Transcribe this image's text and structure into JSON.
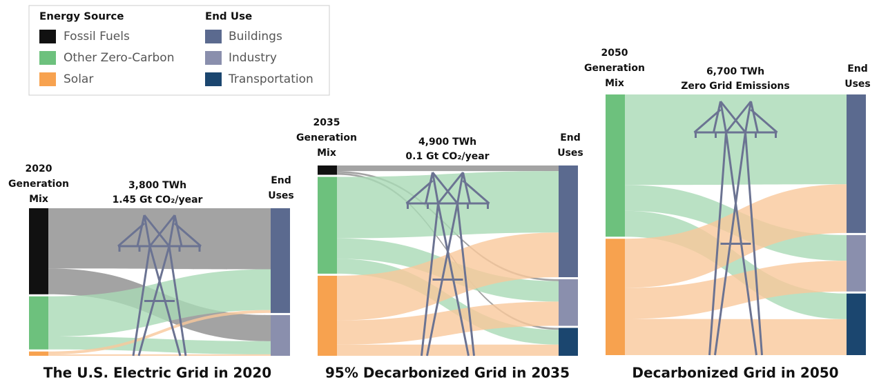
{
  "legend": {
    "source_title": "Energy Source",
    "use_title": "End Use",
    "sources": [
      {
        "label": "Fossil Fuels",
        "color": "#111111",
        "flow_color": "#8c8c8c"
      },
      {
        "label": "Other Zero-Carbon",
        "color": "#6dc17d",
        "flow_color": "#a9dab5"
      },
      {
        "label": "Solar",
        "color": "#f7a24f",
        "flow_color": "#f9c89b"
      }
    ],
    "uses": [
      {
        "label": "Buildings",
        "color": "#5b6a8f"
      },
      {
        "label": "Industry",
        "color": "#8a8fad"
      },
      {
        "label": "Transportation",
        "color": "#1b466f"
      }
    ]
  },
  "panels": [
    {
      "mix_label": [
        "2020",
        "Generation",
        "Mix"
      ],
      "total": "3,800 TWh",
      "emissions": "1.45 Gt CO₂/year",
      "uses_label": [
        "End",
        "Uses"
      ],
      "title": "The U.S. Electric Grid in 2020",
      "sources": [
        60,
        37,
        3
      ],
      "uses": [
        72,
        28,
        0
      ],
      "flows": [
        [
          42,
          18,
          0
        ],
        [
          28,
          9,
          0
        ],
        [
          2,
          1,
          0
        ]
      ]
    },
    {
      "mix_label": [
        "2035",
        "Generation",
        "Mix"
      ],
      "total": "4,900 TWh",
      "emissions": "0.1 Gt CO₂/year",
      "uses_label": [
        "End",
        "Uses"
      ],
      "title": "95% Decarbonized Grid in 2035",
      "sources": [
        5,
        52,
        43
      ],
      "uses": [
        60,
        25,
        15
      ],
      "flows": [
        [
          3,
          1,
          1
        ],
        [
          33,
          11,
          8
        ],
        [
          24,
          13,
          6
        ]
      ]
    },
    {
      "mix_label": [
        "2050",
        "Generation",
        "Mix"
      ],
      "total": "6,700 TWh",
      "emissions": "Zero Grid Emissions",
      "uses_label": [
        "End",
        "Uses"
      ],
      "title": "Decarbonized Grid in 2050",
      "sources": [
        0,
        55,
        45
      ],
      "uses": [
        54,
        22,
        24
      ],
      "flows": [
        [
          0,
          0,
          0
        ],
        [
          35,
          10,
          10
        ],
        [
          19,
          12,
          14
        ]
      ]
    }
  ]
}
